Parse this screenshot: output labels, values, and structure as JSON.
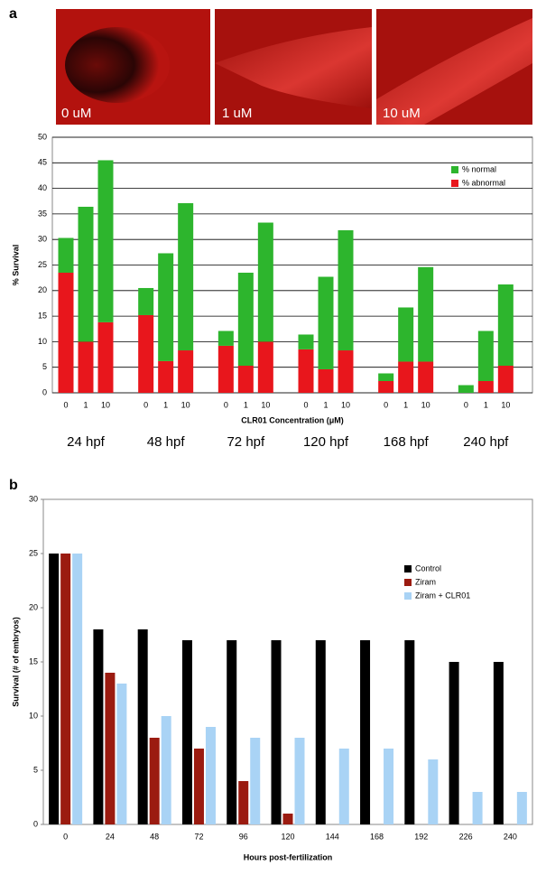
{
  "panels": [
    "a",
    "b"
  ],
  "images": [
    {
      "label": "0 uM"
    },
    {
      "label": "1 uM"
    },
    {
      "label": "10 uM"
    }
  ],
  "chart_data": [
    {
      "type": "bar",
      "stacked": true,
      "grid": true,
      "legend": "upper right",
      "ylabel": "% Survival",
      "xlabel": "CLR01 Concentration (μM)",
      "groups": [
        "24 hpf",
        "48 hpf",
        "72 hpf",
        "120 hpf",
        "168 hpf",
        "240 hpf"
      ],
      "categories": [
        "0",
        "1",
        "10",
        "0",
        "1",
        "10",
        "0",
        "1",
        "10",
        "0",
        "1",
        "10",
        "0",
        "1",
        "10",
        "0",
        "1",
        "10"
      ],
      "series": [
        {
          "name": "% abnormal",
          "color": "#e8161c",
          "values": [
            23.5,
            10,
            13.8,
            15.2,
            6.2,
            8.3,
            9.2,
            5.3,
            10,
            8.5,
            4.6,
            8.3,
            2.3,
            6.1,
            6.1,
            0,
            2.3,
            5.3
          ]
        },
        {
          "name": "% normal",
          "color": "#2db52d",
          "values": [
            6.8,
            26.4,
            31.7,
            5.3,
            21.1,
            28.8,
            2.9,
            18.2,
            23.3,
            2.9,
            18.1,
            23.5,
            1.5,
            10.6,
            18.5,
            1.5,
            9.8,
            15.9
          ]
        }
      ],
      "ylim": [
        0,
        50
      ],
      "yticks": [
        0,
        5,
        10,
        15,
        20,
        25,
        30,
        35,
        40,
        45,
        50
      ]
    },
    {
      "type": "bar",
      "stacked": false,
      "grid": false,
      "legend": "upper right",
      "ylabel": "Survival (# of embryos)",
      "xlabel": "Hours post-fertilization",
      "categories": [
        "0",
        "24",
        "48",
        "72",
        "96",
        "120",
        "144",
        "168",
        "192",
        "226",
        "240"
      ],
      "series": [
        {
          "name": "Control",
          "color": "#000000",
          "values": [
            25,
            18,
            18,
            17,
            17,
            17,
            17,
            17,
            17,
            15,
            15
          ]
        },
        {
          "name": "Ziram",
          "color": "#9b1b10",
          "values": [
            25,
            14,
            8,
            7,
            4,
            1,
            null,
            null,
            null,
            null,
            null
          ]
        },
        {
          "name": "Ziram + CLR01",
          "color": "#a9d3f5",
          "values": [
            25,
            13,
            10,
            9,
            8,
            8,
            7,
            7,
            6,
            3,
            3
          ]
        }
      ],
      "ylim": [
        0,
        30
      ],
      "yticks": [
        0,
        5,
        10,
        15,
        20,
        25,
        30
      ]
    }
  ]
}
